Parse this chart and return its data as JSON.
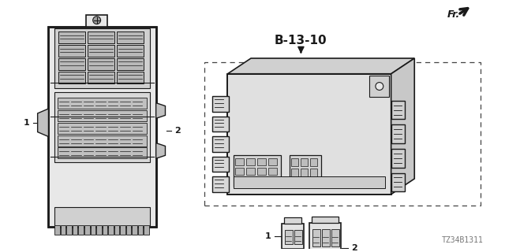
{
  "bg_color": "#ffffff",
  "title_code": "B-13-10",
  "part_number": "TZ34B1311",
  "fr_label": "Fr.",
  "label1": "1",
  "label2": "2",
  "line_color": "#1a1a1a",
  "gray_fill": "#c8c8c8",
  "light_gray": "#e8e8e8",
  "mid_gray": "#a0a0a0"
}
